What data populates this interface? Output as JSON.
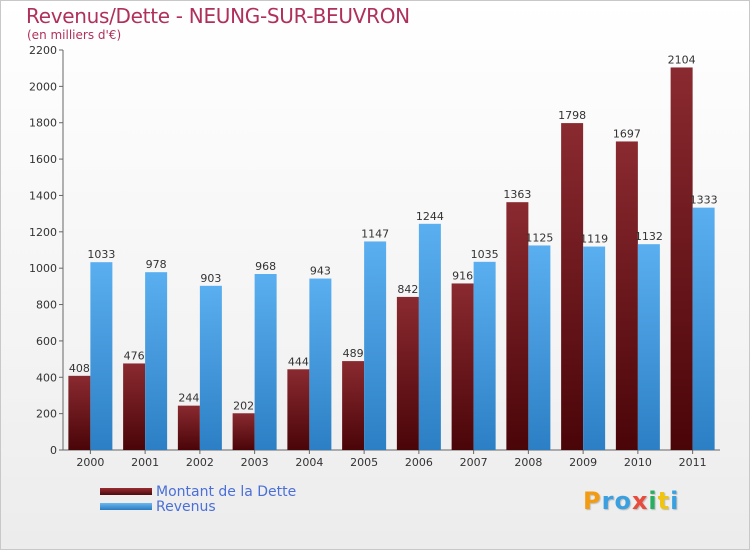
{
  "chart_data": {
    "type": "bar",
    "title": "Revenus/Dette - NEUNG-SUR-BEUVRON",
    "subtitle": "(en milliers d'€)",
    "categories": [
      "2000",
      "2001",
      "2002",
      "2003",
      "2004",
      "2005",
      "2006",
      "2007",
      "2008",
      "2009",
      "2010",
      "2011"
    ],
    "series": [
      {
        "name": "Montant de la Dette",
        "color": "#7a1e24",
        "values": [
          408,
          476,
          244,
          202,
          444,
          489,
          842,
          916,
          1363,
          1798,
          1697,
          2104
        ]
      },
      {
        "name": "Revenus",
        "color": "#3d9be0",
        "values": [
          1033,
          978,
          903,
          968,
          943,
          1147,
          1244,
          1035,
          1125,
          1119,
          1132,
          1333
        ]
      }
    ],
    "ylim": [
      0,
      2200
    ],
    "yticks": [
      0,
      200,
      400,
      600,
      800,
      1000,
      1200,
      1400,
      1600,
      1800,
      2000,
      2200
    ],
    "grid": false,
    "legend_position": "bottom-left"
  },
  "logo": {
    "letters": [
      "P",
      "r",
      "o",
      "x",
      "i",
      "t",
      "i"
    ],
    "colors": [
      "#f39c12",
      "#3aa0e0",
      "#3aa0e0",
      "#e74c3c",
      "#27ae60",
      "#f1c40f",
      "#3aa0e0"
    ]
  }
}
